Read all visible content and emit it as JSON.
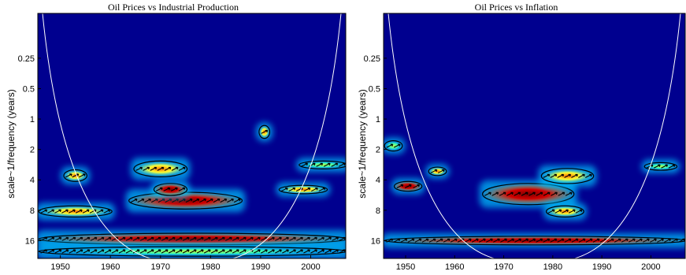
{
  "chart_data": [
    {
      "type": "heatmap",
      "title": "Oil Prices vs Industrial Production",
      "ylabel": "scale~1/frequency    (years)",
      "x_ticks": [
        1950,
        1960,
        1970,
        1980,
        1990,
        2000
      ],
      "xlim": [
        1945.5,
        2007
      ],
      "y_ticks": [
        0.25,
        0.5,
        1,
        2,
        4,
        8,
        16
      ],
      "y_scale": "log2",
      "ylim": [
        0.09,
        24
      ],
      "colormap": "jet",
      "cone_of_influence": true,
      "regions": [
        {
          "x0": 1964,
          "x1": 1986,
          "y0": 5.5,
          "y1": 7.5,
          "level": "high"
        },
        {
          "x0": 1969,
          "x1": 1975,
          "y0": 4.5,
          "y1": 5.5,
          "level": "high"
        },
        {
          "x0": 1946,
          "x1": 2007,
          "y0": 14,
          "y1": 17,
          "level": "high"
        },
        {
          "x0": 1946,
          "x1": 1960,
          "y0": 7.5,
          "y1": 9,
          "level": "medium"
        },
        {
          "x0": 1965,
          "x1": 1975,
          "y0": 2.7,
          "y1": 3.6,
          "level": "medium"
        },
        {
          "x0": 1951,
          "x1": 1955,
          "y0": 3.3,
          "y1": 4.0,
          "level": "medium"
        },
        {
          "x0": 1990,
          "x1": 1991.5,
          "y0": 1.2,
          "y1": 1.5,
          "level": "medium"
        },
        {
          "x0": 1994,
          "x1": 2003,
          "y0": 4.7,
          "y1": 5.3,
          "level": "medium"
        },
        {
          "x0": 1998,
          "x1": 2007,
          "y0": 2.7,
          "y1": 3.0,
          "level": "low"
        },
        {
          "x0": 1946,
          "x1": 2007,
          "y0": 19,
          "y1": 22,
          "level": "low"
        }
      ]
    },
    {
      "type": "heatmap",
      "title": "Oil Prices vs Inflation",
      "ylabel": "scale~1/frequency    (years)",
      "x_ticks": [
        1950,
        1960,
        1970,
        1980,
        1990,
        2000
      ],
      "xlim": [
        1945.5,
        2007
      ],
      "y_ticks": [
        0.25,
        0.5,
        1,
        2,
        4,
        8,
        16
      ],
      "y_scale": "log2",
      "ylim": [
        0.09,
        24
      ],
      "colormap": "jet",
      "cone_of_influence": true,
      "regions": [
        {
          "x0": 1966,
          "x1": 1984,
          "y0": 4.5,
          "y1": 6.8,
          "level": "high"
        },
        {
          "x0": 1948,
          "x1": 1953,
          "y0": 4.3,
          "y1": 5.0,
          "level": "high"
        },
        {
          "x0": 1946,
          "x1": 2007,
          "y0": 15,
          "y1": 17,
          "level": "high"
        },
        {
          "x0": 1978,
          "x1": 1988,
          "y0": 3.2,
          "y1": 4.2,
          "level": "medium"
        },
        {
          "x0": 1955,
          "x1": 1958,
          "y0": 3.1,
          "y1": 3.5,
          "level": "medium"
        },
        {
          "x0": 1979,
          "x1": 1986,
          "y0": 7.5,
          "y1": 9,
          "level": "medium"
        },
        {
          "x0": 1999,
          "x1": 2005,
          "y0": 2.8,
          "y1": 3.1,
          "level": "low"
        },
        {
          "x0": 1946,
          "x1": 1949,
          "y0": 1.7,
          "y1": 2.0,
          "level": "low"
        }
      ]
    }
  ]
}
